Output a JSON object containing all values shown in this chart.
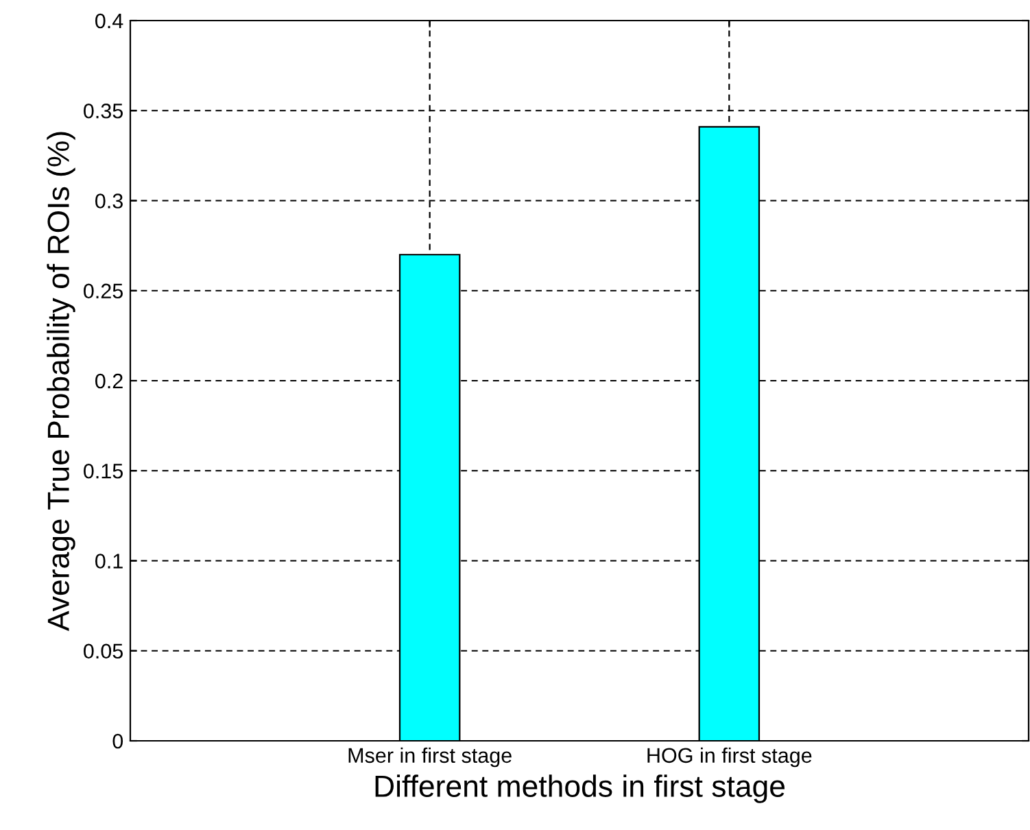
{
  "chart_data": {
    "type": "bar",
    "xlabel": "Different methods in first stage",
    "ylabel": "Average True Probability of ROIs (%)",
    "categories": [
      "Mser in first stage",
      "HOG in first stage"
    ],
    "values": [
      0.27,
      0.341
    ],
    "color": "#00ffff",
    "ylim": [
      0,
      0.4
    ],
    "yticks": [
      0,
      0.05,
      0.1,
      0.15,
      0.2,
      0.25,
      0.3,
      0.35,
      0.4
    ],
    "grid": true
  }
}
